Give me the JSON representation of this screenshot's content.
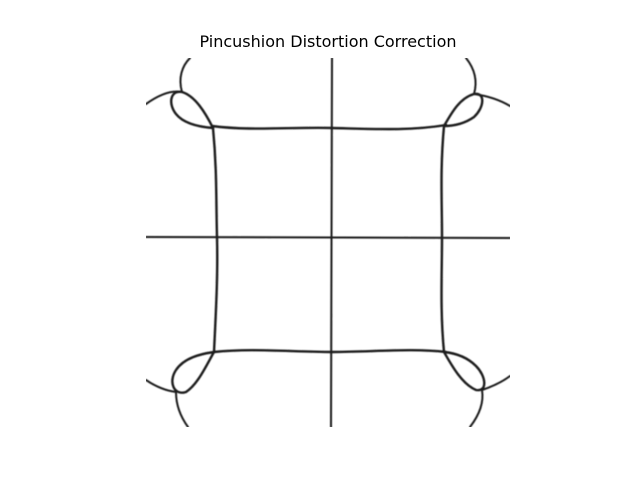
{
  "figure": {
    "title": "Pincushion Distortion Correction"
  },
  "image": {
    "description_kind": "distorted grid image",
    "colors": {
      "background": "#ffffff",
      "line": "#1a1a1a"
    }
  }
}
